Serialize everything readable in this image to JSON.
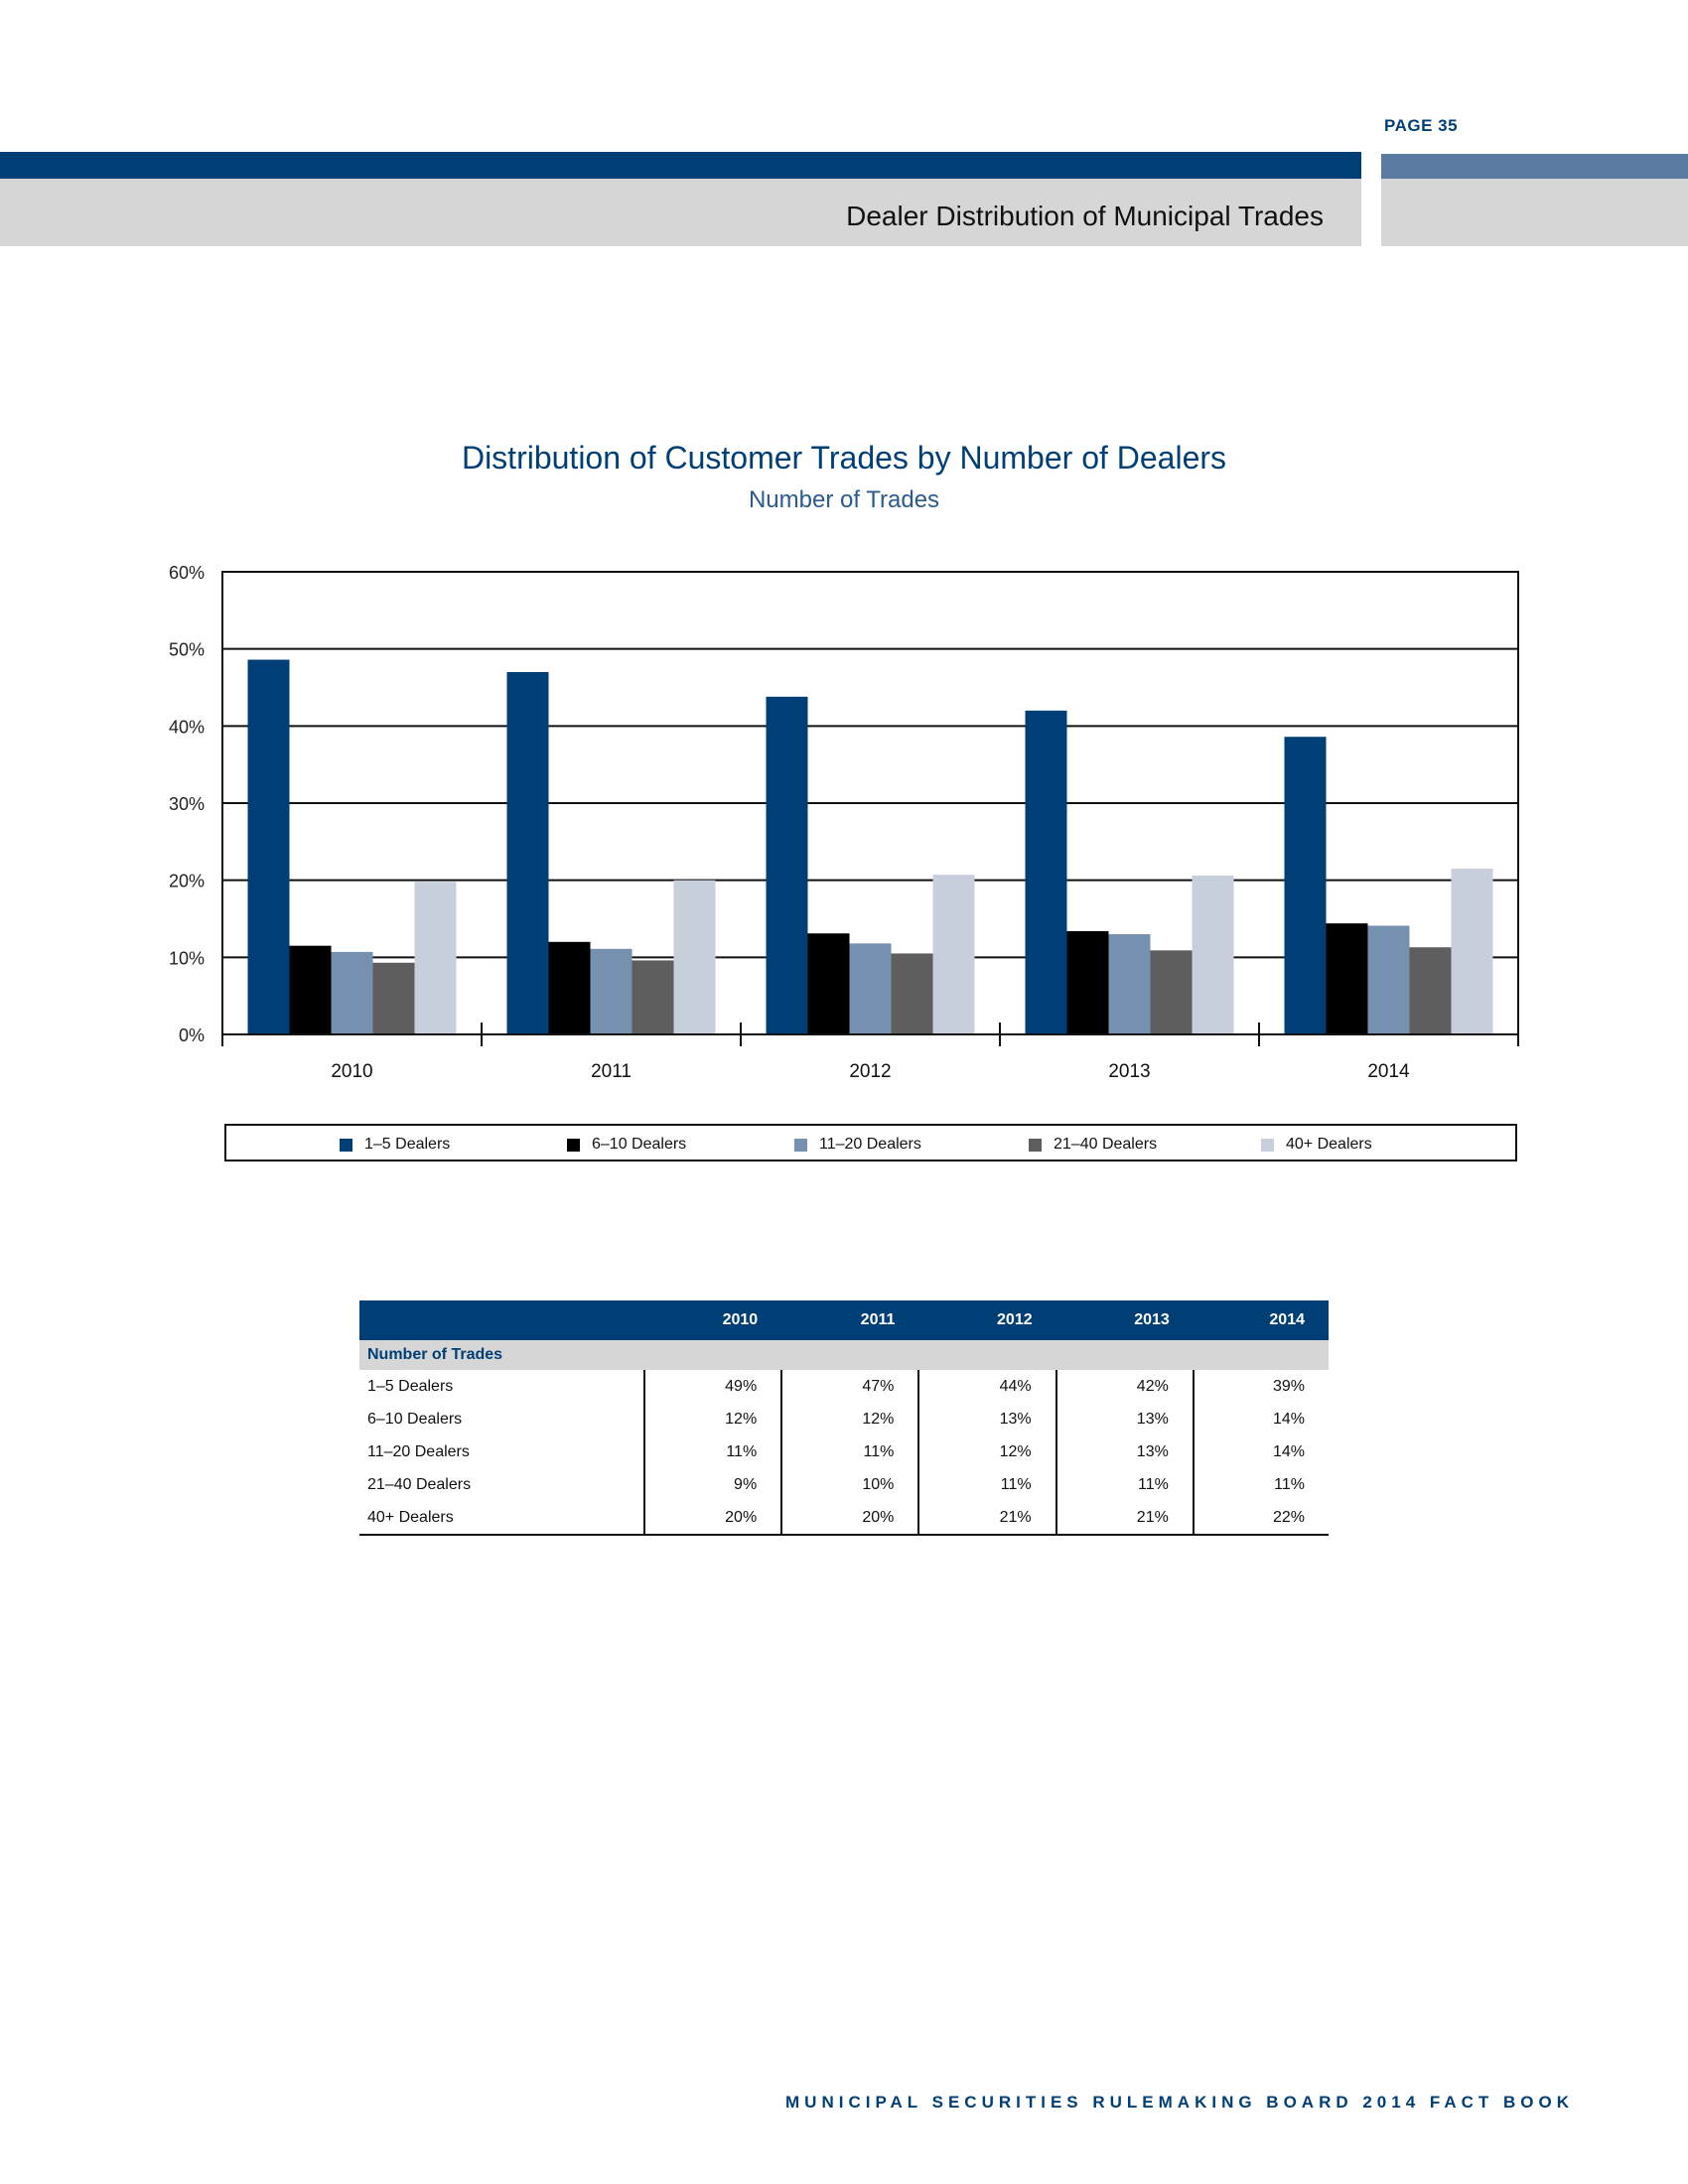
{
  "header": {
    "page": "PAGE 35",
    "section_title": "Dealer Distribution of Municipal Trades"
  },
  "chart_data": {
    "type": "bar",
    "title": "Distribution of Customer Trades by Number of Dealers",
    "subtitle": "Number of Trades",
    "categories": [
      "2010",
      "2011",
      "2012",
      "2013",
      "2014"
    ],
    "ylim": [
      0,
      60
    ],
    "yticks": [
      0,
      10,
      20,
      30,
      40,
      50,
      60
    ],
    "ytick_labels": [
      "0%",
      "10%",
      "20%",
      "30%",
      "40%",
      "50%",
      "60%"
    ],
    "grid": true,
    "legend_position": "bottom",
    "series": [
      {
        "name": "1–5 Dealers",
        "color": "#003f75",
        "values": [
          48.6,
          47.0,
          43.8,
          42.0,
          38.6
        ]
      },
      {
        "name": "6–10 Dealers",
        "color": "#000000",
        "values": [
          11.5,
          12.0,
          13.1,
          13.4,
          14.4
        ]
      },
      {
        "name": "11–20 Dealers",
        "color": "#7690b0",
        "values": [
          10.7,
          11.1,
          11.8,
          13.0,
          14.1
        ]
      },
      {
        "name": "21–40 Dealers",
        "color": "#5e5e5e",
        "values": [
          9.3,
          9.6,
          10.5,
          10.9,
          11.3
        ]
      },
      {
        "name": "40+ Dealers",
        "color": "#c8cfdc",
        "values": [
          19.8,
          20.0,
          20.7,
          20.6,
          21.5
        ]
      }
    ]
  },
  "table": {
    "columns": [
      "2010",
      "2011",
      "2012",
      "2013",
      "2014"
    ],
    "section": "Number of Trades",
    "rows": [
      {
        "label": "1–5 Dealers",
        "values": [
          "49%",
          "47%",
          "44%",
          "42%",
          "39%"
        ]
      },
      {
        "label": "6–10 Dealers",
        "values": [
          "12%",
          "12%",
          "13%",
          "13%",
          "14%"
        ]
      },
      {
        "label": "11–20 Dealers",
        "values": [
          "11%",
          "11%",
          "12%",
          "13%",
          "14%"
        ]
      },
      {
        "label": "21–40 Dealers",
        "values": [
          "9%",
          "10%",
          "11%",
          "11%",
          "11%"
        ]
      },
      {
        "label": "40+ Dealers",
        "values": [
          "20%",
          "20%",
          "21%",
          "21%",
          "22%"
        ]
      }
    ]
  },
  "footer": "MUNICIPAL SECURITIES RULEMAKING BOARD 2014 FACT BOOK"
}
